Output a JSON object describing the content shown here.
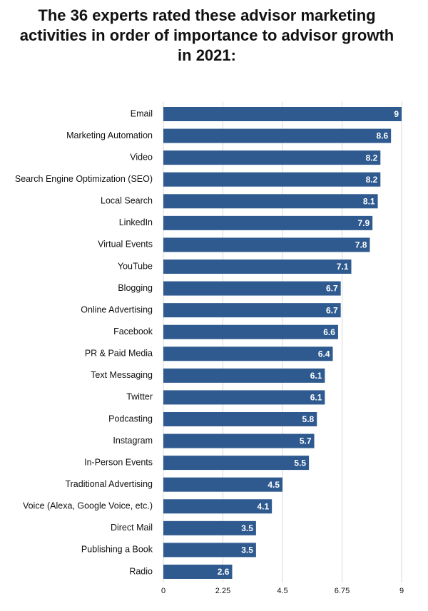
{
  "chart_data": {
    "type": "hbar",
    "title": "The 36 experts rated these advisor marketing activities in order of importance to advisor growth in 2021:",
    "categories": [
      "Email",
      "Marketing Automation",
      "Video",
      "Search Engine Optimization (SEO)",
      "Local Search",
      "LinkedIn",
      "Virtual Events",
      "YouTube",
      "Blogging",
      "Online Advertising",
      "Facebook",
      "PR & Paid Media",
      "Text Messaging",
      "Twitter",
      "Podcasting",
      "Instagram",
      "In-Person Events",
      "Traditional Advertising",
      "Voice (Alexa, Google Voice, etc.)",
      "Direct Mail",
      "Publishing a Book",
      "Radio"
    ],
    "values": [
      9,
      8.6,
      8.2,
      8.2,
      8.1,
      7.9,
      7.8,
      7.1,
      6.7,
      6.7,
      6.6,
      6.4,
      6.1,
      6.1,
      5.8,
      5.7,
      5.5,
      4.5,
      4.1,
      3.5,
      3.5,
      2.6
    ],
    "color": "#2f5a8f",
    "xlim": [
      0,
      9
    ],
    "xticks": [
      0,
      2.25,
      4.5,
      6.75,
      9
    ],
    "grid": true
  }
}
